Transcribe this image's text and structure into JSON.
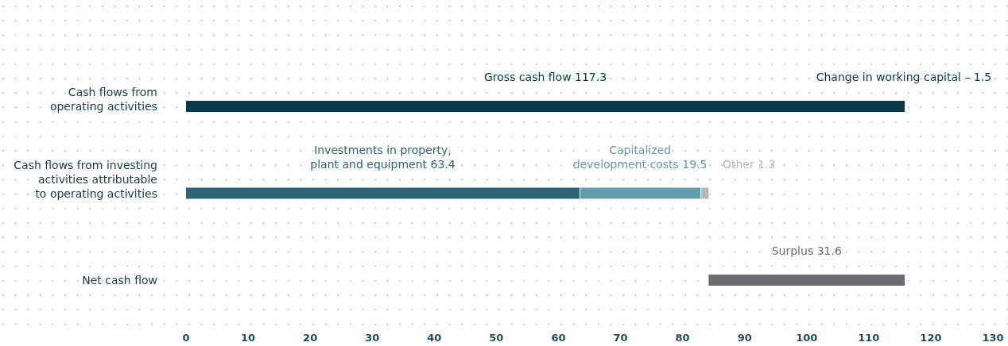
{
  "chart_data": {
    "type": "bar",
    "orientation": "horizontal",
    "categories": [
      "Cash flows from operating activities",
      "Cash flows from investing activities attributable to operating activities",
      "Net cash flow"
    ],
    "series": [
      {
        "color": "#073a4b",
        "values": [
          115.8,
          null,
          null
        ],
        "base": [
          0,
          null,
          null
        ]
      },
      {
        "color": "#2f6474",
        "values": [
          null,
          63.4,
          null
        ],
        "base": [
          null,
          0,
          null
        ]
      },
      {
        "color": "#629dad",
        "values": [
          null,
          19.5,
          null
        ],
        "base": [
          null,
          63.4,
          null
        ]
      },
      {
        "color": "#b5b7ba",
        "values": [
          null,
          1.3,
          null
        ],
        "base": [
          null,
          82.9,
          null
        ]
      },
      {
        "color": "#6c6d71",
        "values": [
          null,
          null,
          31.6
        ],
        "base": [
          null,
          null,
          84.2
        ]
      }
    ],
    "xlim": [
      0,
      130
    ],
    "xticks": [
      0,
      10,
      20,
      30,
      40,
      50,
      60,
      70,
      80,
      90,
      100,
      110,
      120,
      130
    ],
    "annotations": [
      "Gross cash flow 117.3",
      "Investments in property, plant and equipment 63.4",
      "Capitalized development costs 19.5",
      "Other 1.3",
      "Surplus 31.6",
      "Change in working capital – 1.5"
    ]
  }
}
